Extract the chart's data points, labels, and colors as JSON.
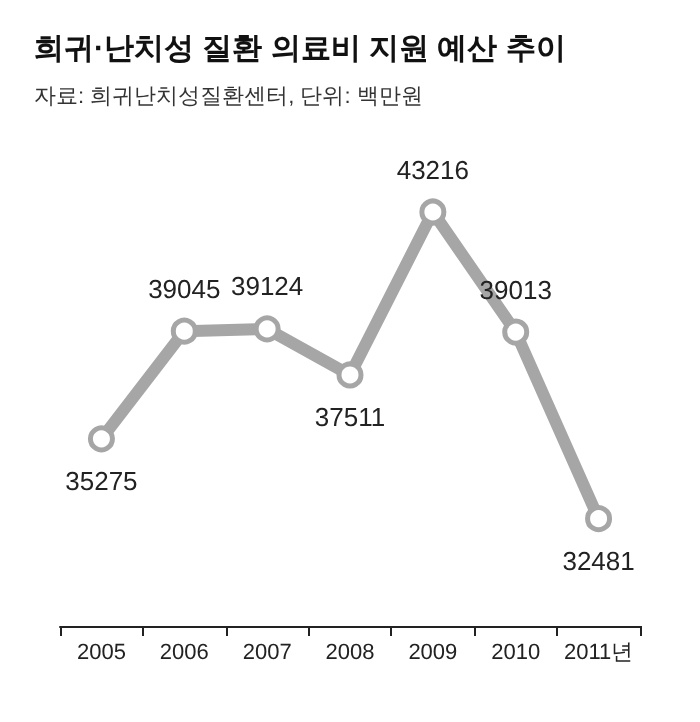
{
  "chart_data": {
    "type": "line",
    "title": "희귀·난치성 질환 의료비 지원 예산 추이",
    "subtitle": "자료: 희귀난치성질환센터, 단위: 백만원",
    "categories": [
      "2005",
      "2006",
      "2007",
      "2008",
      "2009",
      "2010",
      "2011년"
    ],
    "series": [
      {
        "color": "#a6a6a6",
        "values": [
          35275,
          39045,
          39124,
          37511,
          43216,
          39013,
          32481
        ]
      }
    ],
    "data_labels": true,
    "marker": "circle",
    "grid": false
  }
}
